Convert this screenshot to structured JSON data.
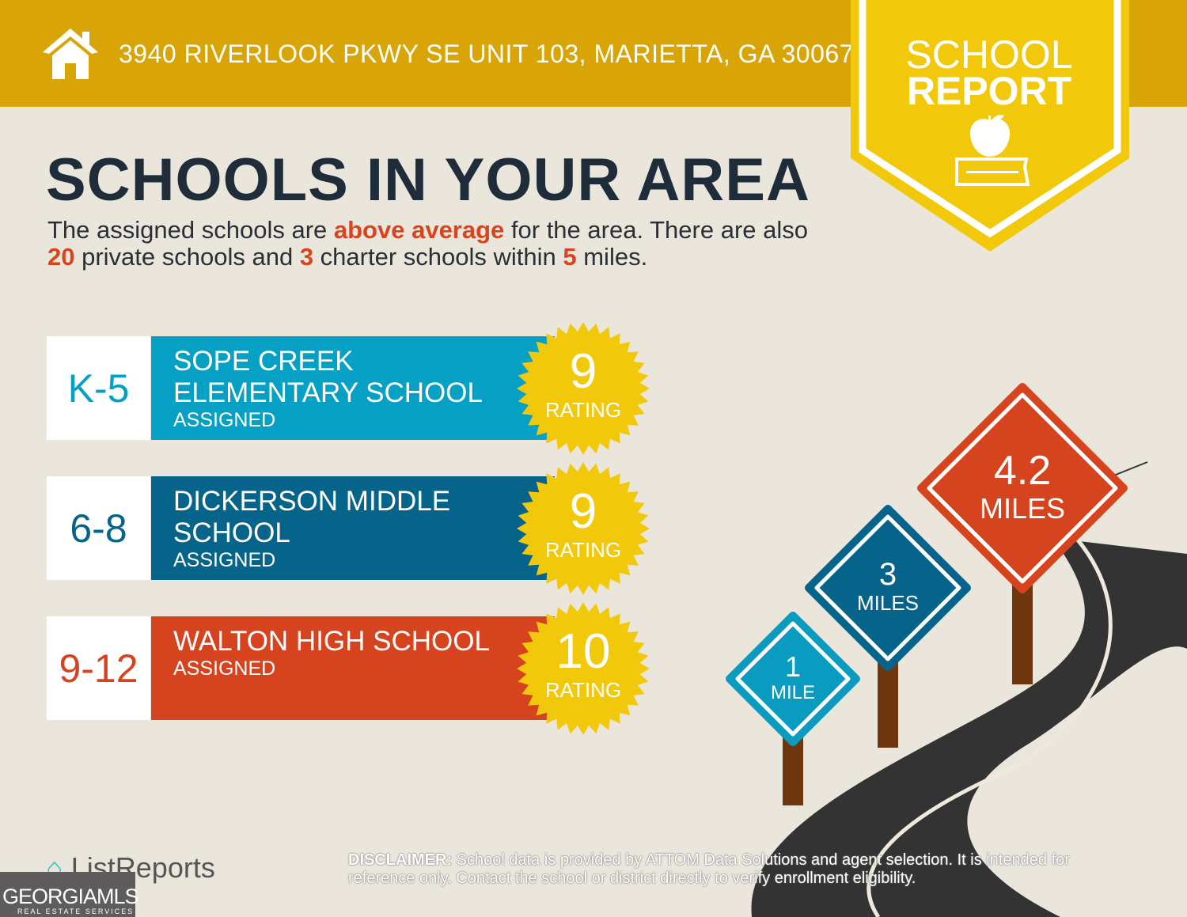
{
  "header": {
    "address": "3940 RIVERLOOK PKWY SE UNIT 103, MARIETTA, GA 30067",
    "icon": "home-icon"
  },
  "badge": {
    "line1": "SCHOOL",
    "line2": "REPORT",
    "icon": "apple-on-book-icon"
  },
  "title": "SCHOOLS IN YOUR AREA",
  "intro": {
    "p1": "The assigned schools are ",
    "h1": "above average",
    "p2": " for the area. There are also ",
    "h2": "20",
    "p3": " private schools and ",
    "h3": "3",
    "p4": " charter schools within ",
    "h4": "5",
    "p5": " miles."
  },
  "schools": [
    {
      "grade": "K-5",
      "name": "SOPE CREEK ELEMENTARY SCHOOL",
      "status": "ASSIGNED",
      "rating": "9",
      "rating_label": "RATING",
      "color": "#06a0c4"
    },
    {
      "grade": "6-8",
      "name": "DICKERSON MIDDLE SCHOOL",
      "status": "ASSIGNED",
      "rating": "9",
      "rating_label": "RATING",
      "color": "#06638a"
    },
    {
      "grade": "9-12",
      "name": "WALTON HIGH SCHOOL",
      "status": "ASSIGNED",
      "rating": "10",
      "rating_label": "RATING",
      "color": "#d6441f"
    }
  ],
  "signs": [
    {
      "num": "1",
      "unit": "MILE",
      "color": "#0a9cc0"
    },
    {
      "num": "3",
      "unit": "MILES",
      "color": "#06638a"
    },
    {
      "num": "4.2",
      "unit": "MILES",
      "color": "#d6441f"
    }
  ],
  "footer": {
    "logo": "ListReports",
    "mls": "GEORGIAMLS",
    "mls_sub": "REAL ESTATE SERVICES",
    "disclaimer_label": "DISCLAIMER:",
    "disclaimer": " School data is provided by ATTOM Data Solutions and agent selection. It is intended for reference only. Contact the school or district directly to verify enrollment eligibility."
  }
}
